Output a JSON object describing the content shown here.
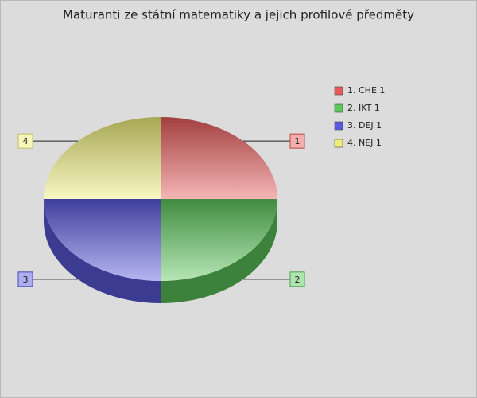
{
  "chart_data": {
    "type": "pie",
    "title": "Maturanti ze státní matematiky a jejich profilové předměty",
    "categories": [
      "1. CHE 1",
      "2. IKT 1",
      "3. DEJ 1",
      "4. NEJ 1"
    ],
    "values": [
      1,
      1,
      1,
      1
    ],
    "point_labels": [
      "1",
      "2",
      "3",
      "4"
    ],
    "colors": [
      "#e85a5a",
      "#5cc85c",
      "#5a5ae0",
      "#eeee78"
    ],
    "legend": "right"
  }
}
